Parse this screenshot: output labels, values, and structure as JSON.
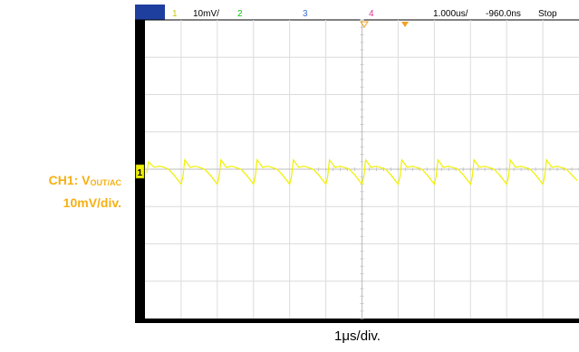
{
  "annotation": {
    "prefix": "CH1: V",
    "subscript": "OUT/AC",
    "scale": "10mV/div."
  },
  "x_caption": "1μs/div.",
  "status_bar": {
    "ch1_label": "1",
    "ch1_scale": "10mV/",
    "ch2_label": "2",
    "ch3_label": "3",
    "ch4_label": "4",
    "timebase": "1.000us/",
    "delay": "-960.0ns",
    "run_state": "Stop"
  },
  "ground_marker": "1",
  "colors": {
    "ch1": "#f0f000",
    "ch2": "#00c800",
    "ch3": "#3b6fd6",
    "ch4": "#e0308f",
    "annotation": "#f5b014",
    "trigger": "#f5a020",
    "status_badge": "#1f3f9f"
  },
  "chart_data": {
    "type": "line",
    "xlim": [
      -6,
      6
    ],
    "ylim": [
      -4,
      4
    ],
    "grid": true,
    "series": [
      {
        "x": [
          -5.95,
          -5.9,
          -5.75,
          -5.6,
          -5.5,
          -5.35,
          -5.2,
          -5.0,
          -4.95,
          -4.9,
          -4.75,
          -4.6,
          -4.5,
          -4.35,
          -4.2,
          -4.0,
          -3.95,
          -3.9,
          -3.75,
          -3.6,
          -3.5,
          -3.35,
          -3.2,
          -3.0,
          -2.95,
          -2.9,
          -2.75,
          -2.6,
          -2.5,
          -2.35,
          -2.2,
          -2.0,
          -1.95,
          -1.9,
          -1.75,
          -1.6,
          -1.5,
          -1.35,
          -1.2,
          -1.0,
          -0.95,
          -0.9,
          -0.75,
          -0.6,
          -0.5,
          -0.35,
          -0.2,
          0.0,
          0.05,
          0.1,
          0.25,
          0.4,
          0.5,
          0.65,
          0.8,
          1.0,
          1.05,
          1.1,
          1.25,
          1.4,
          1.5,
          1.65,
          1.8,
          2.0,
          2.05,
          2.1,
          2.25,
          2.4,
          2.5,
          2.65,
          2.8,
          3.0,
          3.05,
          3.1,
          3.25,
          3.4,
          3.5,
          3.65,
          3.8,
          4.0,
          4.05,
          4.1,
          4.25,
          4.4,
          4.5,
          4.65,
          4.8,
          5.0,
          5.05,
          5.1,
          5.25,
          5.4,
          5.5,
          5.65,
          5.8,
          5.95
        ],
        "values": [
          -0.1,
          0.2,
          0.05,
          0.08,
          0.06,
          0.0,
          -0.15,
          -0.4,
          -0.2,
          0.25,
          0.05,
          0.08,
          0.05,
          0.0,
          -0.15,
          -0.4,
          -0.2,
          0.25,
          0.05,
          0.08,
          0.05,
          0.0,
          -0.15,
          -0.4,
          -0.2,
          0.25,
          0.05,
          0.08,
          0.05,
          0.0,
          -0.15,
          -0.4,
          -0.2,
          0.25,
          0.05,
          0.08,
          0.05,
          0.0,
          -0.15,
          -0.4,
          -0.2,
          0.25,
          0.05,
          0.08,
          0.05,
          0.0,
          -0.15,
          -0.4,
          -0.2,
          0.25,
          0.05,
          0.08,
          0.05,
          0.0,
          -0.15,
          -0.4,
          -0.2,
          0.25,
          0.05,
          0.08,
          0.05,
          0.0,
          -0.15,
          -0.4,
          -0.2,
          0.25,
          0.05,
          0.08,
          0.05,
          0.0,
          -0.15,
          -0.4,
          -0.2,
          0.25,
          0.05,
          0.08,
          0.05,
          0.0,
          -0.15,
          -0.4,
          -0.2,
          0.25,
          0.05,
          0.08,
          0.05,
          0.0,
          -0.15,
          -0.4,
          -0.2,
          0.25,
          0.05,
          0.08,
          0.05,
          0.0,
          -0.15,
          -0.3
        ]
      }
    ]
  }
}
